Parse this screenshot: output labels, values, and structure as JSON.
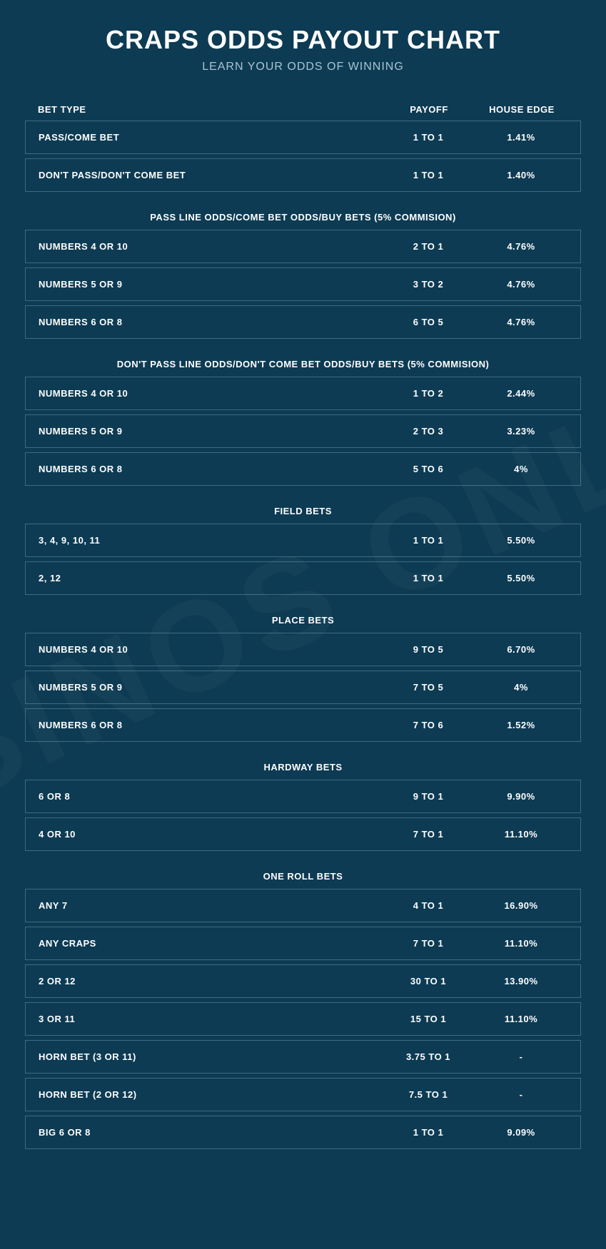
{
  "title": "CRAPS ODDS PAYOUT CHART",
  "subtitle": "LEARN YOUR ODDS OF WINNING",
  "watermark": "CASINOS ONLINE",
  "columns": {
    "bet": "BET TYPE",
    "payoff": "PAYOFF",
    "edge": "HOUSE EDGE"
  },
  "colors": {
    "background": "#0d3b53",
    "text": "#ffffff",
    "subtitle": "#a8c5d3",
    "border": "#3d6b82"
  },
  "sections": [
    {
      "header": "",
      "rows": [
        {
          "bet": "PASS/COME BET",
          "payoff": "1 TO 1",
          "edge": "1.41%"
        },
        {
          "bet": "DON'T PASS/DON'T COME BET",
          "payoff": "1 TO 1",
          "edge": "1.40%"
        }
      ]
    },
    {
      "header": "PASS LINE ODDS/COME BET ODDS/BUY BETS (5% COMMISION)",
      "rows": [
        {
          "bet": "NUMBERS 4 OR 10",
          "payoff": "2 TO 1",
          "edge": "4.76%"
        },
        {
          "bet": "NUMBERS 5 OR 9",
          "payoff": "3 TO 2",
          "edge": "4.76%"
        },
        {
          "bet": "NUMBERS 6 OR 8",
          "payoff": "6 TO 5",
          "edge": "4.76%"
        }
      ]
    },
    {
      "header": "DON'T PASS LINE ODDS/DON'T COME BET ODDS/BUY BETS (5% COMMISION)",
      "rows": [
        {
          "bet": "NUMBERS 4 OR 10",
          "payoff": "1 TO 2",
          "edge": "2.44%"
        },
        {
          "bet": "NUMBERS 5 OR 9",
          "payoff": "2 TO 3",
          "edge": "3.23%"
        },
        {
          "bet": "NUMBERS 6 OR 8",
          "payoff": "5 TO 6",
          "edge": "4%"
        }
      ]
    },
    {
      "header": "FIELD BETS",
      "rows": [
        {
          "bet": "3, 4, 9, 10, 11",
          "payoff": "1 TO 1",
          "edge": "5.50%"
        },
        {
          "bet": "2, 12",
          "payoff": "1 TO 1",
          "edge": "5.50%"
        }
      ]
    },
    {
      "header": "PLACE BETS",
      "rows": [
        {
          "bet": "NUMBERS 4 OR 10",
          "payoff": "9 TO 5",
          "edge": "6.70%"
        },
        {
          "bet": "NUMBERS 5 OR 9",
          "payoff": "7 TO 5",
          "edge": "4%"
        },
        {
          "bet": "NUMBERS 6 OR 8",
          "payoff": "7 TO 6",
          "edge": "1.52%"
        }
      ]
    },
    {
      "header": "HARDWAY BETS",
      "rows": [
        {
          "bet": "6 OR 8",
          "payoff": "9 TO 1",
          "edge": "9.90%"
        },
        {
          "bet": "4 OR 10",
          "payoff": "7 TO 1",
          "edge": "11.10%"
        }
      ]
    },
    {
      "header": "ONE ROLL BETS",
      "rows": [
        {
          "bet": "ANY 7",
          "payoff": "4 TO 1",
          "edge": "16.90%"
        },
        {
          "bet": "ANY CRAPS",
          "payoff": "7 TO 1",
          "edge": "11.10%"
        },
        {
          "bet": "2 OR 12",
          "payoff": "30 TO 1",
          "edge": "13.90%"
        },
        {
          "bet": "3 OR 11",
          "payoff": "15 TO 1",
          "edge": "11.10%"
        },
        {
          "bet": "HORN BET (3 OR 11)",
          "payoff": "3.75 TO 1",
          "edge": "-"
        },
        {
          "bet": "HORN BET (2 OR 12)",
          "payoff": "7.5 TO 1",
          "edge": "-"
        },
        {
          "bet": "BIG 6 OR 8",
          "payoff": "1 TO 1",
          "edge": "9.09%"
        }
      ]
    }
  ]
}
